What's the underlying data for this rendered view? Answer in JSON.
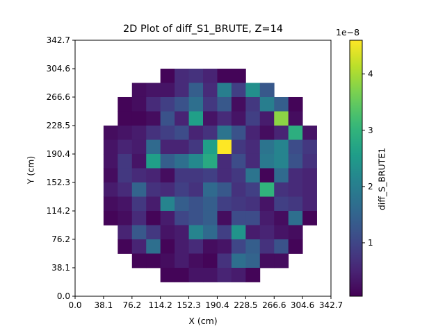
{
  "chart_data": {
    "type": "heatmap",
    "title": "2D Plot of diff_S1_BRUTE, Z=14",
    "xlabel": "X (cm)",
    "ylabel": "Y (cm)",
    "colorbar_label": "diff_S_BRUTE1",
    "colorbar_multiplier": "1e−8",
    "colormap": "viridis",
    "xlim": [
      0.0,
      342.7
    ],
    "ylim": [
      0.0,
      342.7
    ],
    "x_ticks": [
      "0.0",
      "38.1",
      "76.2",
      "114.2",
      "152.3",
      "190.4",
      "228.5",
      "266.6",
      "304.6",
      "342.7"
    ],
    "y_ticks": [
      "0.0",
      "38.1",
      "76.2",
      "114.2",
      "152.3",
      "190.4",
      "228.5",
      "266.6",
      "304.6",
      "342.7"
    ],
    "colorbar_range": [
      0.05,
      4.6
    ],
    "colorbar_ticks": [
      "1",
      "2",
      "3",
      "4"
    ],
    "colorbar_tick_values": [
      1,
      2,
      3,
      4
    ],
    "grid_size": [
      18,
      18
    ],
    "cell_size": 19.04,
    "grid_values_note": "rows from top (Y high) to bottom; values in units of 1e-8; null = empty",
    "grid_values": [
      [
        null,
        null,
        null,
        null,
        null,
        null,
        null,
        null,
        null,
        null,
        null,
        null,
        null,
        null,
        null,
        null,
        null,
        null
      ],
      [
        null,
        null,
        null,
        null,
        null,
        null,
        null,
        null,
        null,
        null,
        null,
        null,
        null,
        null,
        null,
        null,
        null,
        null
      ],
      [
        null,
        null,
        null,
        null,
        null,
        null,
        0.1,
        0.6,
        0.7,
        0.5,
        0.1,
        0.1,
        null,
        null,
        null,
        null,
        null,
        null
      ],
      [
        null,
        null,
        null,
        null,
        0.2,
        0.3,
        0.3,
        0.6,
        1.4,
        0.6,
        2.0,
        0.9,
        2.3,
        1.3,
        null,
        null,
        null,
        null
      ],
      [
        null,
        null,
        null,
        0.1,
        0.2,
        0.6,
        0.9,
        1.2,
        1.7,
        0.8,
        1.3,
        0.2,
        0.8,
        2.0,
        1.4,
        0.1,
        null,
        null
      ],
      [
        null,
        null,
        null,
        0.1,
        0.1,
        0.2,
        1.2,
        0.5,
        2.6,
        0.3,
        0.6,
        0.3,
        0.9,
        0.4,
        3.8,
        0.2,
        null,
        null
      ],
      [
        null,
        null,
        0.2,
        0.3,
        0.4,
        0.7,
        0.9,
        1.1,
        0.5,
        0.7,
        1.8,
        1.2,
        0.5,
        0.2,
        0.5,
        2.9,
        0.3,
        null
      ],
      [
        null,
        null,
        0.3,
        0.5,
        0.4,
        1.6,
        0.5,
        0.5,
        0.8,
        2.6,
        4.6,
        0.8,
        0.6,
        1.8,
        2.1,
        1.1,
        0.8,
        null
      ],
      [
        null,
        null,
        0.3,
        0.8,
        0.3,
        2.6,
        1.4,
        1.7,
        2.2,
        2.8,
        0.6,
        1.1,
        0.6,
        1.9,
        2.1,
        1.2,
        0.7,
        null
      ],
      [
        null,
        null,
        0.2,
        0.8,
        0.6,
        0.5,
        0.2,
        0.8,
        0.8,
        0.9,
        0.6,
        0.8,
        1.8,
        0.1,
        1.6,
        0.6,
        0.5,
        null
      ],
      [
        null,
        null,
        0.4,
        0.6,
        1.5,
        0.7,
        0.6,
        0.9,
        0.7,
        1.6,
        1.3,
        0.7,
        0.9,
        3.0,
        0.7,
        0.6,
        0.5,
        null
      ],
      [
        null,
        null,
        0.2,
        0.3,
        0.8,
        0.4,
        2.1,
        1.4,
        1.2,
        1.4,
        0.9,
        0.8,
        0.7,
        0.3,
        0.9,
        0.8,
        0.5,
        null
      ],
      [
        null,
        null,
        0.1,
        0.2,
        0.6,
        0.1,
        0.4,
        1.0,
        1.2,
        1.4,
        0.2,
        1.1,
        1.1,
        0.4,
        0.2,
        1.7,
        0.1,
        null
      ],
      [
        null,
        null,
        null,
        0.5,
        1.3,
        0.8,
        0.3,
        0.4,
        2.1,
        1.6,
        0.9,
        2.4,
        0.4,
        0.5,
        0.3,
        0.2,
        null,
        null
      ],
      [
        null,
        null,
        null,
        0.1,
        0.5,
        1.7,
        0.1,
        0.4,
        0.6,
        0.2,
        0.3,
        1.0,
        1.4,
        0.7,
        1.2,
        0.1,
        null,
        null
      ],
      [
        null,
        null,
        null,
        null,
        0.1,
        0.1,
        0.2,
        0.4,
        0.2,
        0.1,
        0.7,
        1.7,
        1.5,
        0.2,
        0.2,
        null,
        null,
        null
      ],
      [
        null,
        null,
        null,
        null,
        null,
        null,
        0.1,
        0.1,
        0.3,
        0.3,
        0.5,
        0.4,
        0.1,
        null,
        null,
        null,
        null,
        null
      ],
      [
        null,
        null,
        null,
        null,
        null,
        null,
        null,
        null,
        null,
        null,
        null,
        null,
        null,
        null,
        null,
        null,
        null,
        null
      ]
    ]
  }
}
